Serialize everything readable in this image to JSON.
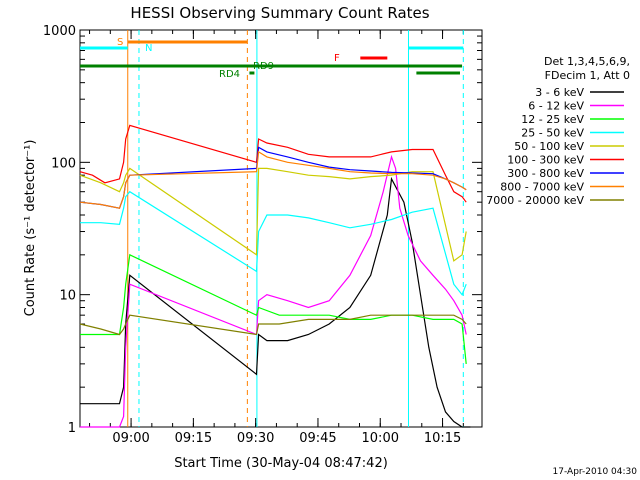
{
  "chart_data": {
    "type": "line",
    "title": "HESSI Observing Summary Count Rates",
    "xlabel": "Start Time (30-May-04 08:47:42)",
    "ylabel": "Count Rate (s⁻¹ detector⁻¹)",
    "y_scale": "log",
    "ylim": [
      1,
      1000
    ],
    "xlim": [
      "08:47:42",
      "10:24:30"
    ],
    "x_ticks": [
      "09:00",
      "09:15",
      "09:30",
      "09:45",
      "10:00",
      "10:15"
    ],
    "y_ticks": [
      "1",
      "10",
      "100",
      "1000"
    ],
    "footer": "17-Apr-2010 04:30",
    "legend": {
      "header1": "Det 1,3,4,5,6,9,",
      "header2": "FDecim 1, Att 0",
      "placement": "right"
    },
    "flags": {
      "S": "S",
      "N": "N",
      "RD9": "RD9",
      "RD4": "RD4",
      "F": "F"
    },
    "series": [
      {
        "name": "3 - 6 keV",
        "color": "#000000",
        "x": [
          0,
          5,
          9.5,
          10.5,
          11,
          12,
          42.5,
          43,
          45,
          50,
          55,
          60,
          65,
          70,
          74,
          75,
          78,
          80,
          82,
          84,
          86,
          88,
          90,
          92,
          93,
          94
        ],
        "y": [
          1.5,
          1.5,
          1.5,
          2,
          6,
          14,
          2.5,
          5,
          4.5,
          4.5,
          5,
          6,
          8,
          14,
          40,
          75,
          50,
          25,
          10,
          4,
          2,
          1.3,
          1.1,
          1,
          1,
          1
        ]
      },
      {
        "name": "6 - 12 keV",
        "color": "#ff00ff",
        "x": [
          0,
          5,
          9.5,
          10.5,
          11,
          12,
          42.5,
          43,
          45,
          50,
          55,
          60,
          65,
          70,
          73,
          75,
          76,
          77,
          79,
          82,
          85,
          88,
          90,
          92,
          93
        ],
        "y": [
          1,
          1,
          1,
          1.2,
          4,
          12,
          5,
          9,
          10,
          9,
          8,
          9,
          14,
          28,
          60,
          110,
          90,
          45,
          28,
          18,
          14,
          11,
          9,
          7,
          5
        ]
      },
      {
        "name": "12 - 25 keV",
        "color": "#00ff00",
        "x": [
          0,
          5,
          9.5,
          10.5,
          11,
          12,
          42.5,
          43,
          48,
          55,
          60,
          65,
          70,
          75,
          80,
          85,
          88,
          90,
          92,
          93
        ],
        "y": [
          5,
          5,
          5,
          8,
          12,
          20,
          7,
          8,
          7,
          7,
          7,
          6.5,
          6.5,
          7,
          7,
          6.5,
          6.5,
          6.5,
          6,
          3
        ]
      },
      {
        "name": "25 - 50 keV",
        "color": "#00ffff",
        "x": [
          0,
          5,
          9.5,
          10.5,
          11,
          12,
          42.5,
          43,
          45,
          50,
          55,
          60,
          65,
          70,
          75,
          80,
          85,
          90,
          92,
          93
        ],
        "y": [
          35,
          35,
          34,
          45,
          55,
          60,
          15,
          30,
          40,
          40,
          38,
          35,
          32,
          34,
          37,
          42,
          45,
          12,
          10,
          12
        ]
      },
      {
        "name": "50 - 100 keV",
        "color": "#cccc00",
        "x": [
          0,
          5,
          9.5,
          10.5,
          11,
          12,
          42.5,
          43,
          45,
          50,
          55,
          60,
          65,
          70,
          75,
          80,
          85,
          90,
          92,
          93
        ],
        "y": [
          80,
          70,
          60,
          70,
          80,
          90,
          20,
          90,
          90,
          85,
          80,
          78,
          75,
          78,
          80,
          85,
          85,
          18,
          20,
          30
        ]
      },
      {
        "name": "100 - 300 keV",
        "color": "#ff0000",
        "x": [
          0,
          3,
          6,
          9.5,
          10.5,
          11,
          12,
          42.5,
          43,
          45,
          50,
          55,
          60,
          65,
          70,
          75,
          80,
          85,
          88,
          90,
          92,
          93
        ],
        "y": [
          85,
          80,
          70,
          75,
          100,
          150,
          190,
          100,
          150,
          140,
          130,
          115,
          110,
          110,
          110,
          120,
          125,
          125,
          80,
          60,
          55,
          50
        ]
      },
      {
        "name": "300 - 800 keV",
        "color": "#0000ff",
        "x": [
          0,
          5,
          9.5,
          10.5,
          11,
          12,
          42.5,
          43,
          45,
          50,
          55,
          60,
          65,
          70,
          75,
          80,
          85,
          88,
          90,
          92,
          93
        ],
        "y": [
          50,
          48,
          45,
          55,
          70,
          80,
          90,
          130,
          120,
          110,
          100,
          92,
          88,
          86,
          84,
          83,
          82,
          75,
          70,
          65,
          62
        ]
      },
      {
        "name": "800 - 7000 keV",
        "color": "#ff8000",
        "x": [
          0,
          5,
          9.5,
          10.5,
          11,
          12,
          42.5,
          43,
          45,
          50,
          55,
          60,
          65,
          70,
          75,
          80,
          85,
          88,
          90,
          92,
          93
        ],
        "y": [
          50,
          48,
          45,
          55,
          70,
          80,
          85,
          120,
          110,
          100,
          95,
          90,
          85,
          83,
          82,
          82,
          80,
          75,
          70,
          65,
          62
        ]
      },
      {
        "name": "7000 - 20000 keV",
        "color": "#808000",
        "x": [
          0,
          5,
          9.5,
          10.5,
          11,
          12,
          42.5,
          43,
          48,
          55,
          60,
          65,
          70,
          75,
          80,
          85,
          90,
          92,
          93
        ],
        "y": [
          6,
          5.5,
          5,
          5.5,
          6,
          7,
          5,
          6,
          6,
          6.5,
          6.5,
          6.5,
          7,
          7,
          7,
          7,
          7,
          6.5,
          6
        ]
      }
    ]
  }
}
